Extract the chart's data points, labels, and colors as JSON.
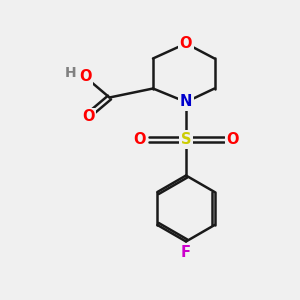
{
  "bg_color": "#f0f0f0",
  "bond_color": "#1a1a1a",
  "bond_width": 1.8,
  "atom_colors": {
    "O": "#ff0000",
    "N": "#0000cc",
    "S": "#cccc00",
    "F": "#cc00cc",
    "H": "#808080",
    "C": "#1a1a1a"
  },
  "font_size": 10.5,
  "fig_width": 3.0,
  "fig_height": 3.0,
  "dpi": 100
}
